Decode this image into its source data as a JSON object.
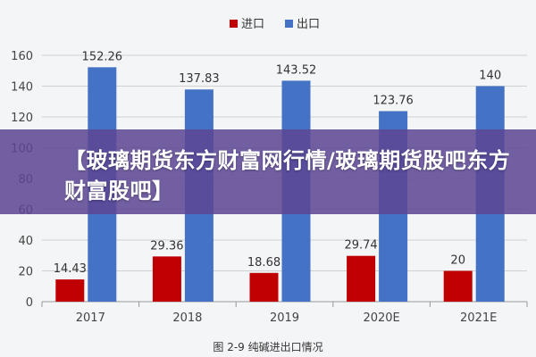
{
  "chart_data": {
    "type": "bar",
    "categories": [
      "2017",
      "2018",
      "2019",
      "2020E",
      "2021E"
    ],
    "series": [
      {
        "name": "进口",
        "values": [
          14.43,
          29.36,
          18.68,
          29.74,
          20
        ],
        "color": "#c00000"
      },
      {
        "name": "出口",
        "values": [
          152.26,
          137.83,
          143.52,
          123.76,
          140
        ],
        "color": "#4472c4"
      }
    ],
    "data_labels": {
      "进口": [
        "14.43",
        "29.36",
        "18.68",
        "29.74",
        "20"
      ],
      "出口": [
        "152.26",
        "137.83",
        "143.52",
        "123.76",
        "140"
      ]
    },
    "ylim": [
      0,
      160
    ],
    "yticks": [
      0,
      20,
      40,
      60,
      80,
      100,
      120,
      140,
      160
    ],
    "grid": true,
    "legend": "top-center",
    "caption": "图 2-9  纯碱进出口情况"
  },
  "banner": {
    "text": "【玻璃期货东方财富网行情/玻璃期货股吧东方财富股吧】",
    "color": "#5c4694"
  }
}
